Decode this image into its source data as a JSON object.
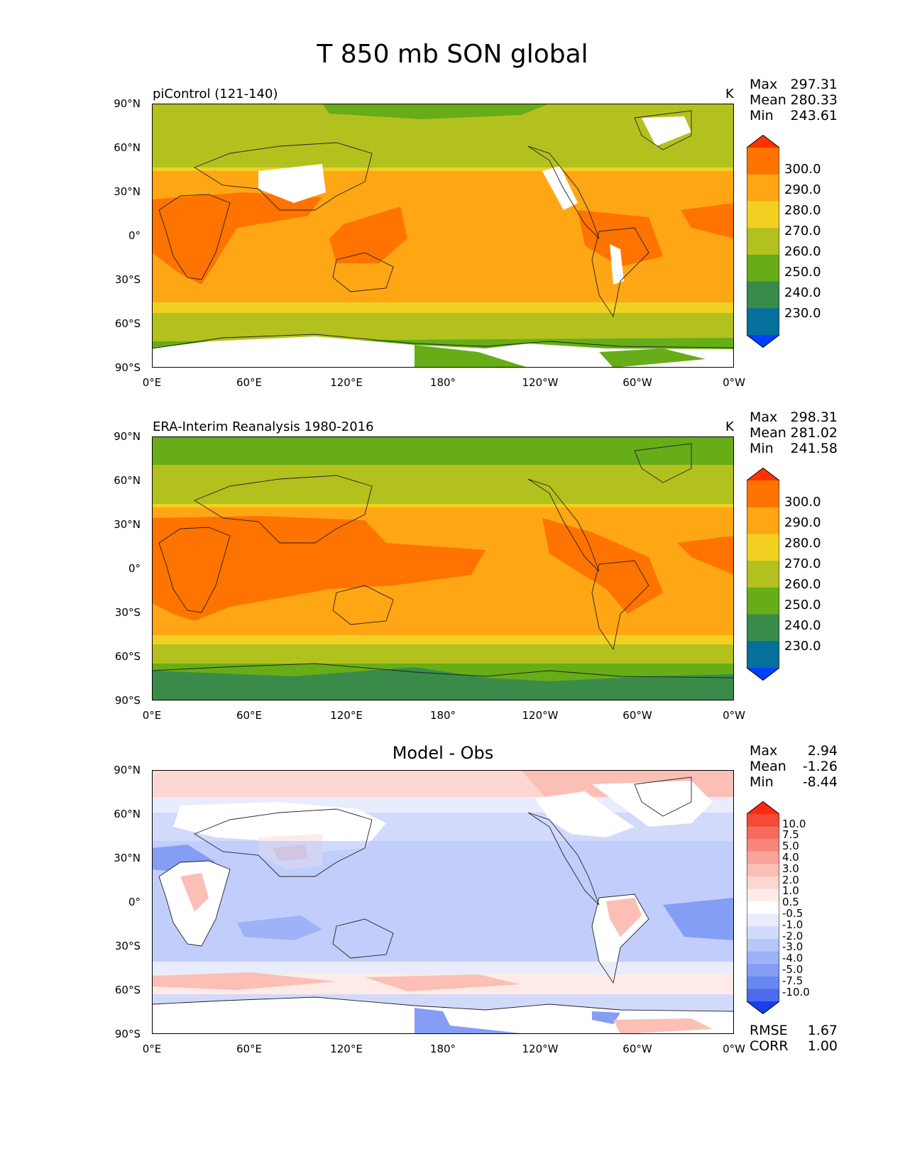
{
  "title": "T 850 mb SON global",
  "yticks": [
    "90°N",
    "60°N",
    "30°N",
    "0°",
    "30°S",
    "60°S",
    "90°S"
  ],
  "xticks": [
    "0°E",
    "60°E",
    "120°E",
    "180°",
    "120°W",
    "60°W",
    "0°W"
  ],
  "panels": [
    {
      "label": "piControl (121-140)",
      "unit": "K",
      "stats": {
        "max_label": "Max",
        "max": "297.31",
        "mean_label": "Mean",
        "mean": "280.33",
        "min_label": "Min",
        "min": "243.61"
      },
      "colorbar": {
        "labels": [
          "300.0",
          "290.0",
          "280.0",
          "270.0",
          "260.0",
          "250.0",
          "240.0",
          "230.0"
        ],
        "colors": [
          "#ff3300",
          "#ff7300",
          "#ffa614",
          "#f2d022",
          "#b3c11f",
          "#66ad18",
          "#3a8b4a",
          "#05709c",
          "#0040ff"
        ]
      }
    },
    {
      "label": "ERA-Interim Reanalysis 1980-2016",
      "unit": "K",
      "stats": {
        "max_label": "Max",
        "max": "298.31",
        "mean_label": "Mean",
        "mean": "281.02",
        "min_label": "Min",
        "min": "241.58"
      },
      "colorbar": {
        "labels": [
          "300.0",
          "290.0",
          "280.0",
          "270.0",
          "260.0",
          "250.0",
          "240.0",
          "230.0"
        ],
        "colors": [
          "#ff3300",
          "#ff7300",
          "#ffa614",
          "#f2d022",
          "#b3c11f",
          "#66ad18",
          "#3a8b4a",
          "#05709c",
          "#0040ff"
        ]
      }
    },
    {
      "label": "Model - Obs",
      "stats": {
        "max_label": "Max",
        "max": "2.94",
        "mean_label": "Mean",
        "mean": "-1.26",
        "min_label": "Min",
        "min": "-8.44"
      },
      "colorbar": {
        "labels": [
          "10.0",
          "7.5",
          "5.0",
          "4.0",
          "3.0",
          "2.0",
          "1.0",
          "0.5",
          "-0.5",
          "-1.0",
          "-2.0",
          "-3.0",
          "-4.0",
          "-5.0",
          "-7.5",
          "-10.0"
        ],
        "colors": [
          "#ff2a0f",
          "#f54a36",
          "#f66b5d",
          "#f8877b",
          "#faa399",
          "#fbbfb6",
          "#fdd8d2",
          "#feebe8",
          "#ffffff",
          "#e9ecfc",
          "#d2dafb",
          "#b8c7fa",
          "#9eb2f8",
          "#849ef5",
          "#6888f1",
          "#4a6ced",
          "#1a3fe8"
        ]
      },
      "footer": {
        "rmse_label": "RMSE",
        "rmse": "1.67",
        "corr_label": "CORR",
        "corr": "1.00"
      }
    }
  ]
}
